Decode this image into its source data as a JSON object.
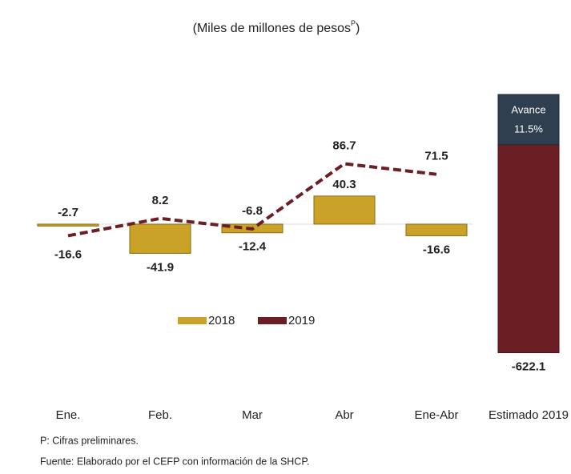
{
  "chart_data": {
    "type": "bar-line",
    "title": "(Miles de millones de pesos",
    "title_superscript": "P",
    "title_end": ")",
    "categories": [
      "Ene.",
      "Feb.",
      "Mar",
      "Abr",
      "Ene-Abr",
      "Estimado 2019"
    ],
    "series": [
      {
        "name": "2018",
        "type": "bar",
        "color": "#c9a227",
        "values": [
          -2.7,
          -41.9,
          -12.4,
          40.3,
          -16.6,
          null
        ]
      },
      {
        "name": "2019",
        "type": "line",
        "color": "#6b1f24",
        "values": [
          -16.6,
          8.2,
          -6.8,
          86.7,
          71.5,
          null
        ]
      },
      {
        "name": "Estimado 2019",
        "type": "bar",
        "axis": "y2",
        "color": "#6b1f24",
        "values": [
          null,
          null,
          null,
          null,
          null,
          -622.1
        ]
      }
    ],
    "annotation": {
      "label": "Avance",
      "value": "11.5%"
    },
    "ylim": [
      -193,
      186
    ],
    "y2lim": [
      -640,
      150
    ],
    "grid": false,
    "notes": [
      "P: Cifras preliminares.",
      "Fuente: Elaborado por el CEFP con información de la SHCP."
    ]
  }
}
